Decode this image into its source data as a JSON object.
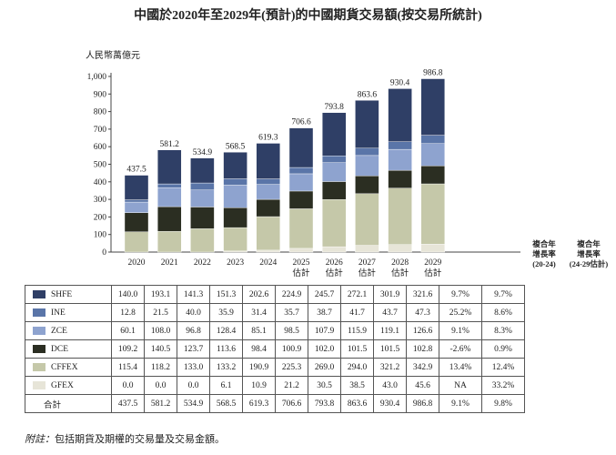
{
  "title": "中國於2020年至2029年(預計)的中國期貨交易額(按交易所統計)",
  "note_prefix": "附註：",
  "note_text": "包括期貨及期權的交易量及交易金額。",
  "chart_data": {
    "type": "bar",
    "stacked": true,
    "title": "中國於2020年至2029年(預計)的中國期貨交易額(按交易所統計)",
    "ylabel": "人民幣萬億元",
    "ylim": [
      0,
      1000
    ],
    "yticks": [
      "0",
      "100",
      "200",
      "300",
      "400",
      "500",
      "600",
      "700",
      "800",
      "900",
      "1,000"
    ],
    "categories": [
      "2020",
      "2021",
      "2022",
      "2023",
      "2024",
      "2025\n估計",
      "2026\n估計",
      "2027\n估計",
      "2028\n估計",
      "2029\n估計"
    ],
    "series": [
      {
        "name": "SHFE",
        "color": "#2f3f66",
        "values": [
          140.0,
          193.1,
          141.3,
          151.3,
          202.6,
          224.9,
          245.7,
          272.1,
          301.9,
          321.6
        ],
        "cagr_20_24": "9.7%",
        "cagr_24_29": "9.7%"
      },
      {
        "name": "INE",
        "color": "#5a75a8",
        "values": [
          12.8,
          21.5,
          40.0,
          35.9,
          31.4,
          35.7,
          38.7,
          41.7,
          43.7,
          47.3
        ],
        "cagr_20_24": "25.2%",
        "cagr_24_29": "8.6%"
      },
      {
        "name": "ZCE",
        "color": "#8ea3cf",
        "values": [
          60.1,
          108.0,
          96.8,
          128.4,
          85.1,
          98.5,
          107.9,
          115.9,
          119.1,
          126.6
        ],
        "cagr_20_24": "9.1%",
        "cagr_24_29": "8.3%"
      },
      {
        "name": "DCE",
        "color": "#2b2e22",
        "values": [
          109.2,
          140.5,
          123.7,
          113.6,
          98.4,
          100.9,
          102.0,
          101.5,
          101.5,
          102.8
        ],
        "cagr_20_24": "-2.6%",
        "cagr_24_29": "0.9%"
      },
      {
        "name": "CFFEX",
        "color": "#c5c8a9",
        "values": [
          115.4,
          118.2,
          133.0,
          133.2,
          190.9,
          225.3,
          269.0,
          294.0,
          321.2,
          342.9
        ],
        "cagr_20_24": "13.4%",
        "cagr_24_29": "12.4%"
      },
      {
        "name": "GFEX",
        "color": "#e7e5d8",
        "values": [
          0.0,
          0.0,
          0.0,
          6.1,
          10.9,
          21.2,
          30.5,
          38.5,
          43.0,
          45.6
        ],
        "cagr_20_24": "NA",
        "cagr_24_29": "33.2%"
      }
    ],
    "totals": [
      437.5,
      581.2,
      534.9,
      568.5,
      619.3,
      706.6,
      793.8,
      863.6,
      930.4,
      986.8
    ],
    "total_label": "合計",
    "total_cagr_20_24": "9.1%",
    "total_cagr_24_29": "9.8%",
    "cagr_header_1": "複合年\n增長率\n(20-24)",
    "cagr_header_2": "複合年\n增長率\n(24-29估計)",
    "grid": false
  }
}
